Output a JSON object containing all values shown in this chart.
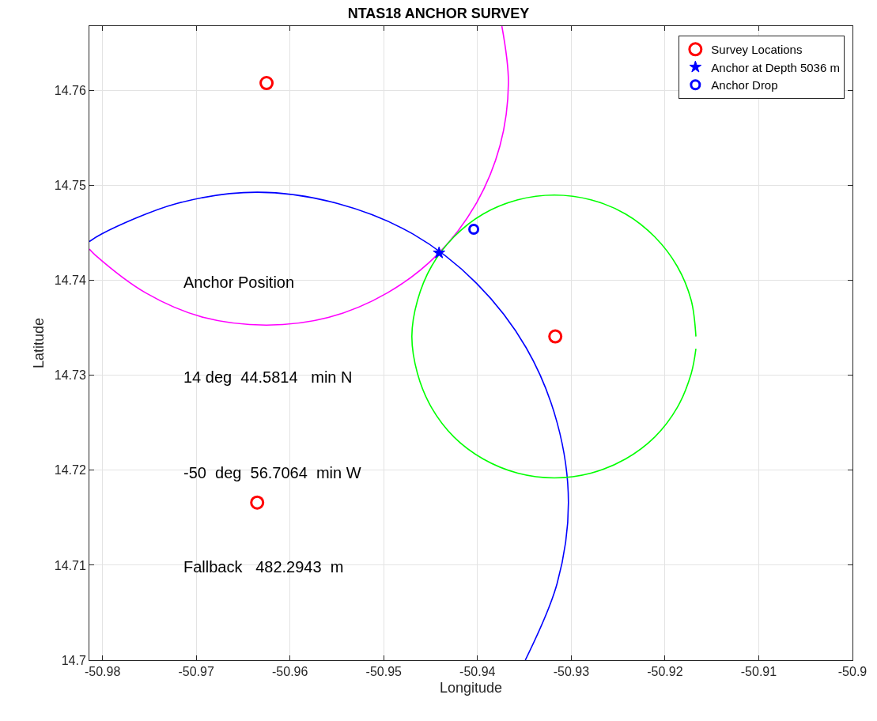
{
  "chart_data": {
    "type": "scatter",
    "title": "NTAS18 ANCHOR SURVEY",
    "xlabel": "Longitude",
    "ylabel": "Latitude",
    "xlim": [
      -50.9814,
      -50.9
    ],
    "ylim": [
      14.7,
      14.7668
    ],
    "xticks": [
      -50.98,
      -50.97,
      -50.96,
      -50.95,
      -50.94,
      -50.93,
      -50.92,
      -50.91,
      -50.9
    ],
    "yticks": [
      14.7,
      14.71,
      14.72,
      14.73,
      14.74,
      14.75,
      14.76
    ],
    "grid": true,
    "legend": "top right",
    "annotations": [
      "Anchor Position",
      "14 deg  44.5814   min N",
      "-50  deg  56.7064  min W",
      "Fallback   482.2943  m"
    ],
    "series": [
      {
        "type": "line",
        "color": "#0000ff",
        "marker": "none",
        "x": [
          -50.9349,
          -50.9315,
          -50.9303,
          -50.9315,
          -50.9348,
          -50.9401,
          -50.9469,
          -50.9549,
          -50.9635,
          -50.9721,
          -50.9801,
          -50.9814
        ],
        "values": [
          14.7,
          14.7081,
          14.7166,
          14.725,
          14.7329,
          14.7397,
          14.7449,
          14.7481,
          14.7493,
          14.7481,
          14.7449,
          14.7441
        ]
      },
      {
        "type": "line",
        "color": "#ff00ff",
        "marker": "none",
        "x": [
          -50.9374,
          -50.9367,
          -50.9376,
          -50.9402,
          -50.9443,
          -50.9496,
          -50.9559,
          -50.9625,
          -50.9692,
          -50.9754,
          -50.9808,
          -50.9814
        ],
        "values": [
          14.7668,
          14.7608,
          14.7542,
          14.748,
          14.7427,
          14.7387,
          14.7361,
          14.7353,
          14.7361,
          14.7387,
          14.7427,
          14.7433
        ]
      },
      {
        "type": "line",
        "color": "#00ff00",
        "marker": "none",
        "x": [
          -50.9167,
          -50.9172,
          -50.9187,
          -50.9211,
          -50.9242,
          -50.9279,
          -50.9318,
          -50.9357,
          -50.9394,
          -50.9425,
          -50.9449,
          -50.9464,
          -50.947,
          -50.9464,
          -50.9449,
          -50.9425,
          -50.9394,
          -50.9357,
          -50.9318,
          -50.9279,
          -50.9242,
          -50.9211,
          -50.9187,
          -50.9172,
          -50.9167
        ],
        "values": [
          14.7341,
          14.7379,
          14.7415,
          14.7446,
          14.747,
          14.7485,
          14.749,
          14.7485,
          14.747,
          14.7446,
          14.7415,
          14.7379,
          14.7341,
          14.7302,
          14.7266,
          14.7235,
          14.7212,
          14.7197,
          14.7192,
          14.7197,
          14.7212,
          14.7235,
          14.7266,
          14.7302,
          14.7328
        ]
      },
      {
        "name": "Survey Locations",
        "color": "#ff0000",
        "marker": "circle",
        "x": [
          -50.9625,
          -50.9635,
          -50.9317
        ],
        "values": [
          14.7608,
          14.7166,
          14.7341
        ]
      },
      {
        "name": "Anchor at Depth 5036 m",
        "color": "#0000ff",
        "marker": "star",
        "x": [
          -50.9441
        ],
        "values": [
          14.7429
        ]
      },
      {
        "name": "Anchor Drop",
        "color": "#0000ff",
        "marker": "circle",
        "x": [
          -50.9404
        ],
        "values": [
          14.7454
        ]
      }
    ]
  }
}
